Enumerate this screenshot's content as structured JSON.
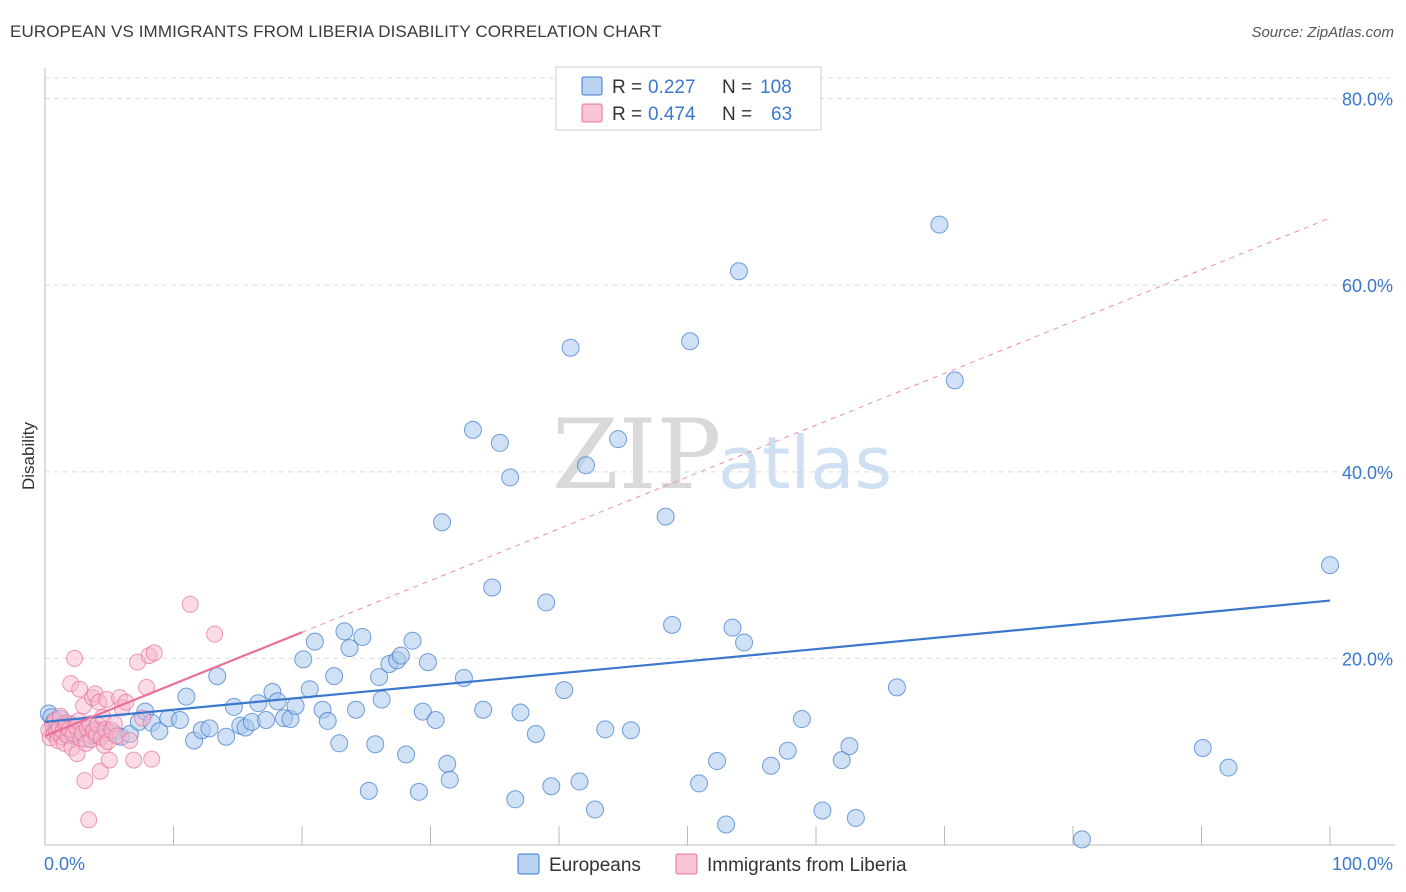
{
  "header": {
    "title": "EUROPEAN VS IMMIGRANTS FROM LIBERIA DISABILITY CORRELATION CHART",
    "source": "Source: ZipAtlas.com"
  },
  "colors": {
    "blue": "#3b78cc",
    "blue_fill": "#a9c8ee",
    "pink": "#e8709a",
    "pink_fill": "#f7b7cb",
    "grid": "#dddddd"
  },
  "watermark": {
    "zip": "ZIP",
    "atlas": "atlas"
  },
  "legend": {
    "series": [
      {
        "r_label": "R =",
        "r_value": "0.227",
        "n_label": "N =",
        "n_value": "108"
      },
      {
        "r_label": "R =",
        "r_value": "0.474",
        "n_label": "N =",
        "n_value": "63"
      }
    ]
  },
  "bottom_legend": [
    "Europeans",
    "Immigrants from Liberia"
  ],
  "chart_data": {
    "type": "scatter",
    "title": "EUROPEAN VS IMMIGRANTS FROM LIBERIA DISABILITY CORRELATION CHART",
    "xlabel": "",
    "ylabel": "Disability",
    "xlim": [
      0,
      100
    ],
    "ylim": [
      0,
      80
    ],
    "x_tick_labels": [
      "0.0%",
      "100.0%"
    ],
    "y_ticks": [
      20,
      40,
      60,
      80
    ],
    "y_tick_labels": [
      "20.0%",
      "40.0%",
      "60.0%",
      "80.0%"
    ],
    "series": [
      {
        "name": "Europeans",
        "r": 0.227,
        "n": 108,
        "trend": {
          "x0": 0,
          "y0": 13.2,
          "x1": 100,
          "y1": 26.2
        },
        "points": [
          [
            0.3,
            14.1
          ],
          [
            0.5,
            13.7
          ],
          [
            0.7,
            13.2
          ],
          [
            0.9,
            12.6
          ],
          [
            1.0,
            12.2
          ],
          [
            1.2,
            13.5
          ],
          [
            1.4,
            12.9
          ],
          [
            1.6,
            11.9
          ],
          [
            1.8,
            12.4
          ],
          [
            2.0,
            12.9
          ],
          [
            2.3,
            11.7
          ],
          [
            2.6,
            12.2
          ],
          [
            2.9,
            12.6
          ],
          [
            3.2,
            11.4
          ],
          [
            3.5,
            11.8
          ],
          [
            3.9,
            12.4
          ],
          [
            4.3,
            11.6
          ],
          [
            4.8,
            12.1
          ],
          [
            5.3,
            12.0
          ],
          [
            5.9,
            11.6
          ],
          [
            6.6,
            11.9
          ],
          [
            7.3,
            13.2
          ],
          [
            7.8,
            14.3
          ],
          [
            8.3,
            13.1
          ],
          [
            8.9,
            12.2
          ],
          [
            9.6,
            13.6
          ],
          [
            10.5,
            13.4
          ],
          [
            11.0,
            15.9
          ],
          [
            11.6,
            11.2
          ],
          [
            12.2,
            12.3
          ],
          [
            12.8,
            12.5
          ],
          [
            13.4,
            18.1
          ],
          [
            14.1,
            11.6
          ],
          [
            14.7,
            14.8
          ],
          [
            15.2,
            12.8
          ],
          [
            15.6,
            12.6
          ],
          [
            16.1,
            13.2
          ],
          [
            16.6,
            15.2
          ],
          [
            17.2,
            13.4
          ],
          [
            17.7,
            16.4
          ],
          [
            18.1,
            15.4
          ],
          [
            18.6,
            13.6
          ],
          [
            19.1,
            13.5
          ],
          [
            19.5,
            14.9
          ],
          [
            20.1,
            19.9
          ],
          [
            20.6,
            16.7
          ],
          [
            21.0,
            21.8
          ],
          [
            21.6,
            14.5
          ],
          [
            22.0,
            13.3
          ],
          [
            22.5,
            18.1
          ],
          [
            22.9,
            10.9
          ],
          [
            23.3,
            22.9
          ],
          [
            23.7,
            21.1
          ],
          [
            24.2,
            14.5
          ],
          [
            24.7,
            22.3
          ],
          [
            25.2,
            5.8
          ],
          [
            25.7,
            10.8
          ],
          [
            26.2,
            15.6
          ],
          [
            26.0,
            18.0
          ],
          [
            26.8,
            19.4
          ],
          [
            27.4,
            19.8
          ],
          [
            27.7,
            20.3
          ],
          [
            28.1,
            9.7
          ],
          [
            28.6,
            21.9
          ],
          [
            29.1,
            5.7
          ],
          [
            29.4,
            14.3
          ],
          [
            29.8,
            19.6
          ],
          [
            30.4,
            13.4
          ],
          [
            30.9,
            34.6
          ],
          [
            31.3,
            8.7
          ],
          [
            31.5,
            7.0
          ],
          [
            32.6,
            17.9
          ],
          [
            33.3,
            44.5
          ],
          [
            34.1,
            14.5
          ],
          [
            34.8,
            27.6
          ],
          [
            35.4,
            43.1
          ],
          [
            36.2,
            39.4
          ],
          [
            36.6,
            4.9
          ],
          [
            37.0,
            14.2
          ],
          [
            38.2,
            11.9
          ],
          [
            39.0,
            26.0
          ],
          [
            39.4,
            6.3
          ],
          [
            40.4,
            16.6
          ],
          [
            40.9,
            53.3
          ],
          [
            41.6,
            6.8
          ],
          [
            42.1,
            40.7
          ],
          [
            42.8,
            3.8
          ],
          [
            43.6,
            12.4
          ],
          [
            44.6,
            43.5
          ],
          [
            45.6,
            12.3
          ],
          [
            48.3,
            35.2
          ],
          [
            48.8,
            23.6
          ],
          [
            50.2,
            54.0
          ],
          [
            50.9,
            6.6
          ],
          [
            52.3,
            9.0
          ],
          [
            53.0,
            2.2
          ],
          [
            53.5,
            23.3
          ],
          [
            54.0,
            61.5
          ],
          [
            54.4,
            21.7
          ],
          [
            56.5,
            8.5
          ],
          [
            57.8,
            10.1
          ],
          [
            58.9,
            13.5
          ],
          [
            60.5,
            3.7
          ],
          [
            62.0,
            9.1
          ],
          [
            62.6,
            10.6
          ],
          [
            63.1,
            2.9
          ],
          [
            66.3,
            16.9
          ],
          [
            69.6,
            66.5
          ],
          [
            70.8,
            49.8
          ],
          [
            80.7,
            0.6
          ],
          [
            90.1,
            10.4
          ],
          [
            92.1,
            8.3
          ],
          [
            100.0,
            30.0
          ]
        ]
      },
      {
        "name": "Immigrants from Liberia",
        "r": 0.474,
        "n": 63,
        "trend": {
          "x0": 0,
          "y0": 11.7,
          "x1": 20,
          "y1": 22.8
        },
        "points": [
          [
            0.3,
            12.3
          ],
          [
            0.4,
            11.5
          ],
          [
            0.6,
            12.9
          ],
          [
            0.7,
            11.9
          ],
          [
            0.8,
            13.4
          ],
          [
            0.9,
            12.1
          ],
          [
            1.0,
            11.2
          ],
          [
            1.1,
            12.6
          ],
          [
            1.2,
            13.8
          ],
          [
            1.3,
            11.6
          ],
          [
            1.4,
            12.2
          ],
          [
            1.5,
            10.9
          ],
          [
            1.6,
            12.8
          ],
          [
            1.7,
            13.1
          ],
          [
            1.8,
            11.7
          ],
          [
            1.9,
            12.4
          ],
          [
            2.0,
            17.3
          ],
          [
            2.1,
            10.4
          ],
          [
            2.2,
            11.9
          ],
          [
            2.3,
            20.0
          ],
          [
            2.4,
            12.7
          ],
          [
            2.5,
            9.8
          ],
          [
            2.6,
            13.3
          ],
          [
            2.7,
            16.7
          ],
          [
            2.8,
            11.4
          ],
          [
            2.9,
            12.0
          ],
          [
            3.0,
            14.9
          ],
          [
            3.1,
            6.9
          ],
          [
            3.2,
            10.9
          ],
          [
            3.3,
            12.5
          ],
          [
            3.4,
            2.7
          ],
          [
            3.5,
            13.0
          ],
          [
            3.6,
            11.3
          ],
          [
            3.7,
            15.8
          ],
          [
            3.8,
            12.2
          ],
          [
            3.9,
            16.2
          ],
          [
            4.0,
            11.8
          ],
          [
            4.1,
            12.9
          ],
          [
            4.2,
            15.3
          ],
          [
            4.3,
            7.9
          ],
          [
            4.4,
            11.5
          ],
          [
            4.5,
            13.7
          ],
          [
            4.6,
            10.7
          ],
          [
            4.7,
            12.4
          ],
          [
            4.8,
            15.6
          ],
          [
            4.9,
            11.1
          ],
          [
            5.0,
            9.1
          ],
          [
            5.2,
            12.3
          ],
          [
            5.4,
            13.0
          ],
          [
            5.6,
            11.7
          ],
          [
            5.8,
            15.8
          ],
          [
            6.0,
            14.7
          ],
          [
            6.3,
            15.3
          ],
          [
            6.6,
            11.2
          ],
          [
            6.9,
            9.1
          ],
          [
            7.2,
            19.6
          ],
          [
            7.6,
            13.6
          ],
          [
            7.9,
            16.9
          ],
          [
            8.1,
            20.3
          ],
          [
            8.3,
            9.2
          ],
          [
            8.5,
            20.6
          ],
          [
            11.3,
            25.8
          ],
          [
            13.2,
            22.6
          ]
        ]
      }
    ]
  }
}
